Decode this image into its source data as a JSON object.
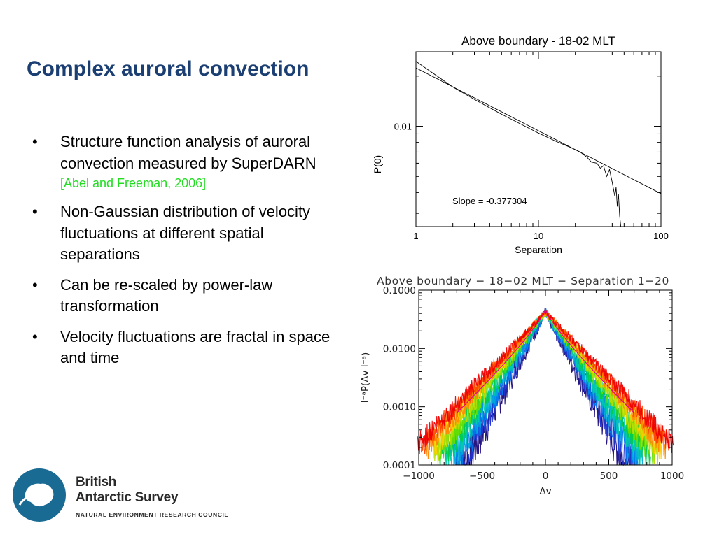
{
  "slide": {
    "title": "Complex auroral convection",
    "bullets": [
      {
        "text": "Structure function analysis of auroral convection measured by SuperDARN",
        "ref": "[Abel and Freeman, 2006]"
      },
      {
        "text": "Non-Gaussian distribution of velocity fluctuations at different spatial separations"
      },
      {
        "text": "Can be re-scaled by power-law transformation"
      },
      {
        "text": "Velocity fluctuations are fractal in space and time"
      }
    ],
    "bullet_symbol": "•"
  },
  "logo": {
    "line1": "British",
    "line2": "Antarctic Survey",
    "line3": "NATURAL ENVIRONMENT RESEARCH COUNCIL",
    "color": "#1a6b94"
  },
  "chart_data": [
    {
      "type": "line",
      "title": "Above boundary - 18-02 MLT",
      "xlabel": "Separation",
      "ylabel": "P(0)",
      "xscale": "log",
      "yscale": "log",
      "xlim": [
        1,
        100
      ],
      "ylim": [
        0.0025,
        0.028
      ],
      "xticks": [
        1,
        10,
        100
      ],
      "xtick_labels": [
        "1",
        "10",
        "100"
      ],
      "yticks": [
        0.01
      ],
      "ytick_labels": [
        "0.01"
      ],
      "annotation": "Slope = -0.377304",
      "fit_slope": -0.377304,
      "series": [
        {
          "x": [
            1,
            2,
            3,
            4,
            5,
            7,
            10,
            14,
            18,
            22,
            25,
            27,
            30,
            32,
            34,
            36,
            38,
            40,
            42,
            43,
            44,
            45,
            46,
            47
          ],
          "y": [
            0.0245,
            0.0172,
            0.0145,
            0.0129,
            0.0118,
            0.0104,
            0.0091,
            0.0081,
            0.0075,
            0.007,
            0.0065,
            0.0061,
            0.006,
            0.0056,
            0.0058,
            0.005,
            0.0055,
            0.0046,
            0.0038,
            0.0043,
            0.0033,
            0.0039,
            0.0029,
            0.0025
          ]
        },
        {
          "x": [
            1,
            100
          ],
          "y": [
            0.0224,
            0.00394
          ]
        }
      ]
    },
    {
      "type": "line",
      "title": "Above boundary − 18−02 MLT − Separation 1−20",
      "xlabel": "Δv",
      "ylabel": "l⁻ᵃP(Δv l⁻ᵃ)",
      "xscale": "linear",
      "yscale": "log",
      "xlim": [
        -1000,
        1000
      ],
      "ylim": [
        0.0001,
        0.1
      ],
      "xticks": [
        -1000,
        -500,
        0,
        500,
        1000
      ],
      "xtick_labels": [
        "−1000",
        "−500",
        "0",
        "500",
        "1000"
      ],
      "yticks": [
        0.0001,
        0.001,
        0.01,
        0.1
      ],
      "ytick_labels": [
        "0.0001",
        "0.0010",
        "0.0100",
        "0.1000"
      ],
      "peak": 0.042,
      "colors": [
        "#1a0a7a",
        "#2233cc",
        "#0077ee",
        "#00aadd",
        "#00ccaa",
        "#00cc44",
        "#66dd00",
        "#bbdd00",
        "#ffcc00",
        "#ff8800",
        "#ff4400",
        "#ee0000"
      ],
      "fit_color": "#dd0088"
    }
  ]
}
